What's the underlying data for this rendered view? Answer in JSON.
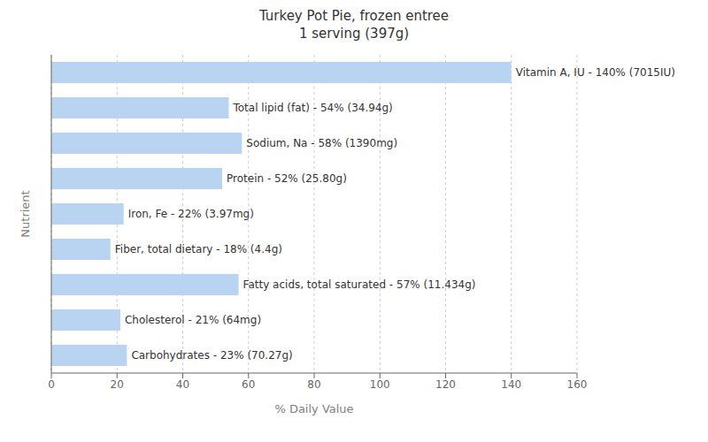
{
  "chart_data": {
    "type": "bar",
    "orientation": "horizontal",
    "title": "Turkey Pot Pie, frozen entree\n1 serving (397g)",
    "xlabel": "% Daily Value",
    "ylabel": "Nutrient",
    "categories": [
      "Carbohydrates - 23% (70.27g)",
      "Cholesterol - 21% (64mg)",
      "Fatty acids, total saturated - 57% (11.434g)",
      "Fiber, total dietary - 18% (4.4g)",
      "Iron, Fe - 22% (3.97mg)",
      "Protein - 52% (25.80g)",
      "Sodium, Na - 58% (1390mg)",
      "Total lipid (fat) - 54% (34.94g)",
      "Vitamin A, IU - 140% (7015IU)"
    ],
    "values": [
      23,
      21,
      57,
      18,
      22,
      52,
      58,
      54,
      140
    ],
    "color": "#b8d4f0",
    "xlim": [
      0,
      160
    ],
    "xticks": [
      0,
      20,
      40,
      60,
      80,
      100,
      120,
      140,
      160
    ],
    "grid": true,
    "tick_labels": "x"
  }
}
